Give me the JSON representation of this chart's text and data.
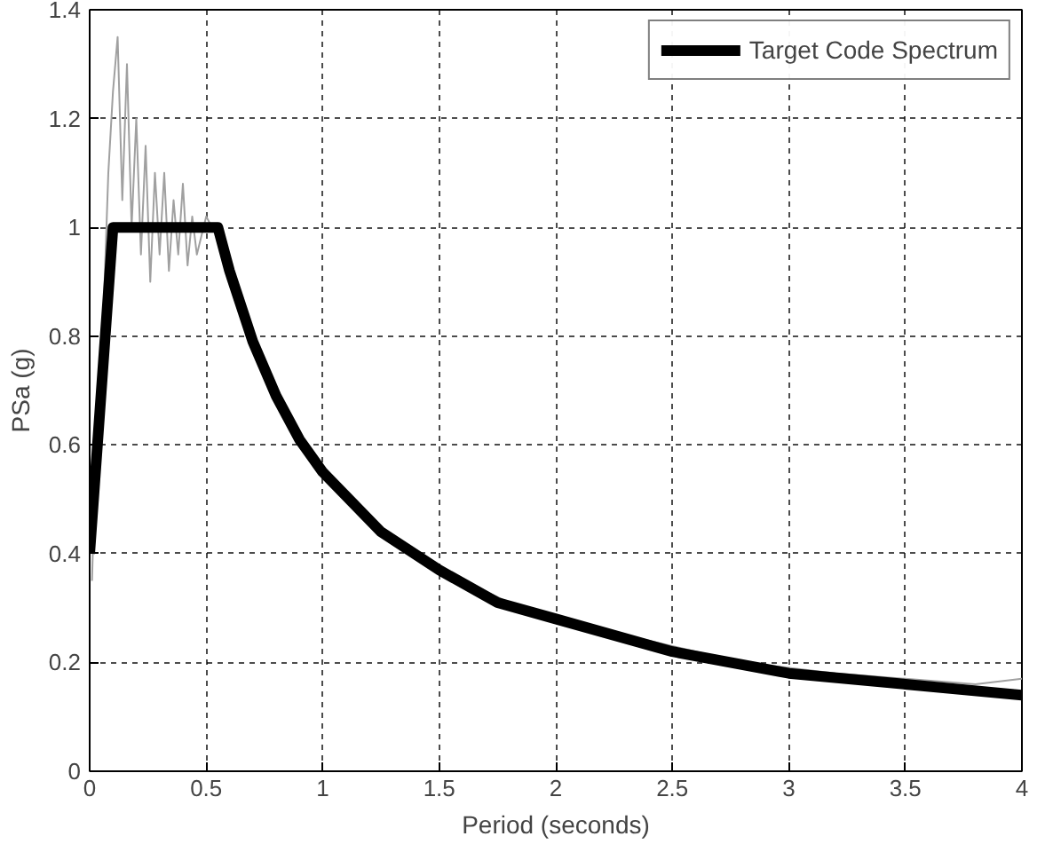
{
  "chart_data": {
    "type": "line",
    "xlabel": "Period (seconds)",
    "ylabel": "PSa (g)",
    "xlim": [
      0,
      4
    ],
    "ylim": [
      0,
      1.4
    ],
    "xticks": [
      0,
      0.5,
      1,
      1.5,
      2,
      2.5,
      3,
      3.5,
      4
    ],
    "yticks": [
      0,
      0.2,
      0.4,
      0.6,
      0.8,
      1,
      1.2,
      1.4
    ],
    "grid": true,
    "legend": "top right",
    "series": [
      {
        "color": "#a0a0a0",
        "x": [
          0.01,
          0.02,
          0.04,
          0.06,
          0.08,
          0.1,
          0.12,
          0.14,
          0.16,
          0.18,
          0.2,
          0.22,
          0.24,
          0.26,
          0.28,
          0.3,
          0.32,
          0.34,
          0.36,
          0.38,
          0.4,
          0.42,
          0.44,
          0.46,
          0.5,
          0.55,
          0.6,
          0.7,
          0.8,
          0.9,
          1.0,
          1.4,
          1.6,
          1.8,
          2.0,
          2.2,
          2.4,
          2.6,
          2.8,
          3.0,
          3.2,
          3.5,
          3.8,
          4.0
        ],
        "values": [
          0.35,
          0.5,
          0.7,
          0.85,
          1.1,
          1.25,
          1.35,
          1.05,
          1.3,
          1.0,
          1.2,
          0.95,
          1.15,
          0.9,
          1.1,
          0.95,
          1.1,
          0.92,
          1.05,
          0.95,
          1.08,
          0.93,
          1.02,
          0.95,
          1.02,
          0.98,
          0.9,
          0.78,
          0.68,
          0.6,
          0.55,
          0.39,
          0.35,
          0.31,
          0.28,
          0.26,
          0.24,
          0.22,
          0.2,
          0.19,
          0.18,
          0.17,
          0.16,
          0.17
        ]
      },
      {
        "name": "Target Code Spectrum",
        "color": "#000000",
        "x": [
          0,
          0.1,
          0.55,
          0.6,
          0.7,
          0.8,
          0.9,
          1.0,
          1.25,
          1.5,
          1.75,
          2,
          2.5,
          3,
          3.5,
          4
        ],
        "values": [
          0.4,
          1.0,
          1.0,
          0.92,
          0.79,
          0.69,
          0.61,
          0.55,
          0.44,
          0.37,
          0.31,
          0.28,
          0.22,
          0.18,
          0.16,
          0.14
        ]
      }
    ]
  }
}
